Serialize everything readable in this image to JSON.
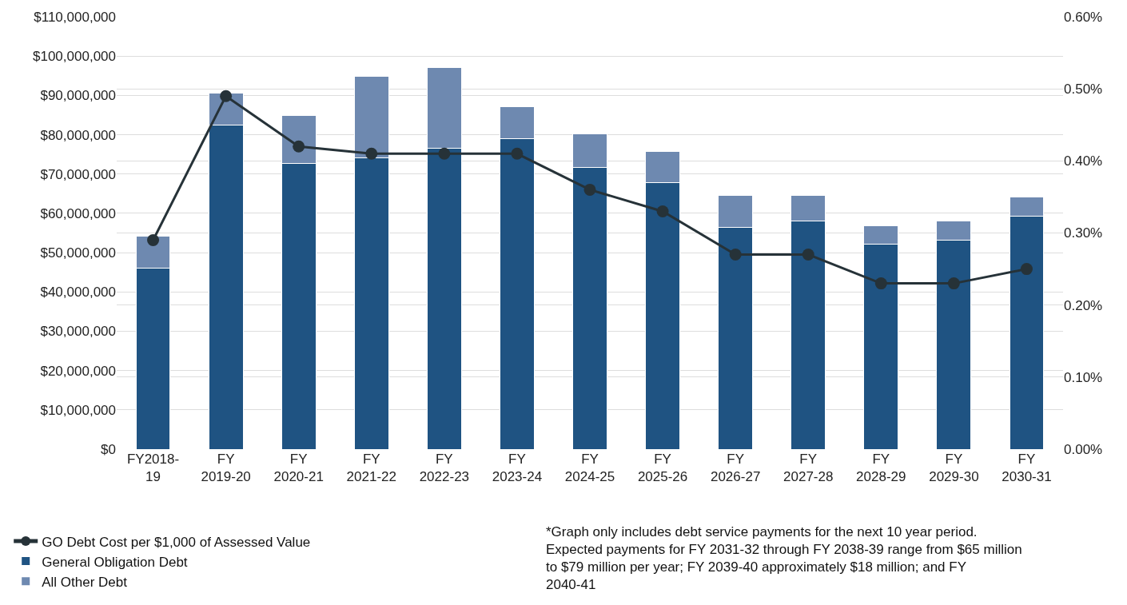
{
  "chart_data": {
    "type": "bar",
    "stacked": true,
    "categories": [
      "FY2018-19",
      "FY 2019-20",
      "FY 2020-21",
      "FY 2021-22",
      "FY 2022-23",
      "FY 2023-24",
      "FY 2024-25",
      "FY 2025-26",
      "FY 2026-27",
      "FY 2027-28",
      "FY 2028-29",
      "FY 2029-30",
      "FY 2030-31"
    ],
    "series": [
      {
        "name": "General Obligation Debt",
        "color": "#1f5382",
        "values": [
          46000000,
          82400000,
          72600000,
          74100000,
          76600000,
          78900000,
          71600000,
          67800000,
          56500000,
          58000000,
          52100000,
          53100000,
          59200000
        ]
      },
      {
        "name": "All Other Debt",
        "color": "#6e89b0",
        "values": [
          8200000,
          8200000,
          12300000,
          20700000,
          20500000,
          8300000,
          8700000,
          7900000,
          8100000,
          6600000,
          4800000,
          4900000,
          5000000
        ]
      },
      {
        "name": "GO Debt Cost per $1,000 of Assessed Value",
        "color": "#263238",
        "type": "line",
        "axis": "y2",
        "marker": "circle",
        "values": [
          0.29,
          0.49,
          0.42,
          0.41,
          0.41,
          0.41,
          0.36,
          0.33,
          0.27,
          0.27,
          0.23,
          0.23,
          0.25
        ]
      }
    ],
    "ylim": [
      0,
      110000000
    ],
    "yticks": [
      {
        "value": 0,
        "label": "$0"
      },
      {
        "value": 10000000,
        "label": "$10,000,000"
      },
      {
        "value": 20000000,
        "label": "$20,000,000"
      },
      {
        "value": 30000000,
        "label": "$30,000,000"
      },
      {
        "value": 40000000,
        "label": "$40,000,000"
      },
      {
        "value": 50000000,
        "label": "$50,000,000"
      },
      {
        "value": 60000000,
        "label": "$60,000,000"
      },
      {
        "value": 70000000,
        "label": "$70,000,000"
      },
      {
        "value": 80000000,
        "label": "$80,000,000"
      },
      {
        "value": 90000000,
        "label": "$90,000,000"
      },
      {
        "value": 100000000,
        "label": "$100,000,000"
      },
      {
        "value": 110000000,
        "label": "$110,000,000"
      }
    ],
    "y2lim": [
      0,
      0.6
    ],
    "y2ticks": [
      {
        "value": 0,
        "label": "0.00%"
      },
      {
        "value": 0.1,
        "label": "0.10%"
      },
      {
        "value": 0.2,
        "label": "0.20%"
      },
      {
        "value": 0.3,
        "label": "0.30%"
      },
      {
        "value": 0.4,
        "label": "0.40%"
      },
      {
        "value": 0.5,
        "label": "0.50%"
      },
      {
        "value": 0.6,
        "label": "0.60%"
      }
    ],
    "grid": "y",
    "legend": "bottom left",
    "annotations": [
      "*Graph only includes debt service payments for the next 10 year period. Expected payments for FY 2031-32 through FY 2038-39 range from $65 million to $79 million per year; FY 2039-40 approximately $18 million; and FY 2040-41"
    ]
  }
}
